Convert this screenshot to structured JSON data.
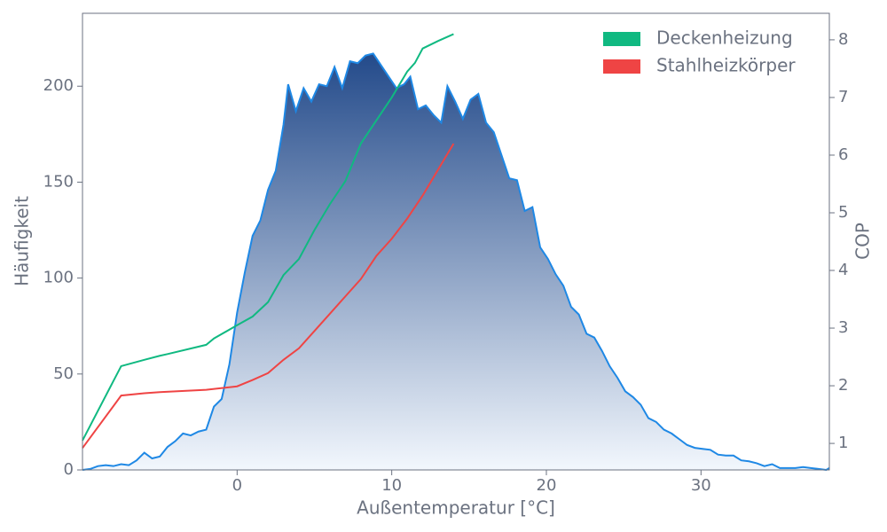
{
  "chart_data": {
    "type": "line",
    "xlabel": "Außentemperatur [°C]",
    "ylabel": "Häufigkeit",
    "y2label": "COP",
    "xlim": [
      -10,
      38.3
    ],
    "xticks": [
      0,
      10,
      20,
      30
    ],
    "ylim": [
      0,
      238
    ],
    "yticks": [
      0,
      50,
      100,
      150,
      200
    ],
    "y2lim": [
      0.54,
      8.46
    ],
    "y2ticks": [
      1,
      2,
      3,
      4,
      5,
      6,
      7,
      8
    ],
    "legend": "upper right",
    "series": [
      {
        "type": "area",
        "color": "#1e88e5",
        "gradient": [
          "#234a8a",
          "#f2f7fd"
        ],
        "x": [
          -10,
          -9.5,
          -9,
          -8.5,
          -8,
          -7.5,
          -7,
          -6.5,
          -6,
          -5.5,
          -5,
          -4.5,
          -4,
          -3.5,
          -3,
          -2.5,
          -2,
          -1.5,
          -1,
          -0.5,
          0,
          0.5,
          1,
          1.5,
          2,
          2.5,
          3,
          3.3,
          3.8,
          4.3,
          4.8,
          5.3,
          5.8,
          6.3,
          6.8,
          7.3,
          7.8,
          8.3,
          8.8,
          9.3,
          9.8,
          10.3,
          10.8,
          11.2,
          11.7,
          12.2,
          12.7,
          13.2,
          13.6,
          14.1,
          14.6,
          15.1,
          15.6,
          16.1,
          16.6,
          17.1,
          17.6,
          18.1,
          18.6,
          19.1,
          19.6,
          20.1,
          20.6,
          21.1,
          21.6,
          22.1,
          22.6,
          23.1,
          23.6,
          24.1,
          24.6,
          25.1,
          25.6,
          26.1,
          26.6,
          27.1,
          27.6,
          28.1,
          28.6,
          29.1,
          29.6,
          30.1,
          30.6,
          31.1,
          31.6,
          32.1,
          32.6,
          33.1,
          33.6,
          34.1,
          34.6,
          35.1,
          35.6,
          36.1,
          36.6,
          37.1,
          37.6,
          38.1,
          38.3
        ],
        "values": [
          0,
          0.5,
          2,
          2.5,
          2,
          3,
          2.5,
          5,
          9,
          6,
          7,
          12,
          15,
          19,
          18,
          20,
          21,
          33,
          37,
          55,
          82,
          103,
          122,
          130,
          146,
          156,
          180,
          201,
          187,
          199,
          192,
          201,
          200,
          210,
          199,
          213,
          212,
          216,
          217,
          211,
          205,
          199,
          201,
          205,
          188,
          190,
          185,
          181,
          200,
          192,
          183,
          193,
          196,
          181,
          176,
          164,
          152,
          151,
          135,
          137,
          116,
          110,
          102,
          96,
          85,
          81,
          71,
          69,
          62,
          54,
          48,
          41,
          38,
          34,
          27,
          25,
          21,
          19,
          16,
          13,
          11.5,
          11,
          10.5,
          8,
          7.5,
          7.5,
          5,
          4.5,
          3.5,
          2,
          3,
          1,
          1,
          1,
          1.5,
          1,
          0.5,
          0,
          1
        ]
      },
      {
        "name": "Deckenheizung",
        "color": "#10b981",
        "axis": "y2",
        "x": [
          -10,
          -7.5,
          -6,
          -5,
          -4.5,
          -2,
          -1.5,
          0,
          1,
          2,
          3,
          4,
          5,
          6,
          7,
          8,
          9,
          10,
          11,
          11.5,
          12,
          13,
          14
        ],
        "values": [
          1.05,
          2.34,
          2.45,
          2.52,
          2.55,
          2.71,
          2.82,
          3.05,
          3.2,
          3.45,
          3.92,
          4.2,
          4.7,
          5.15,
          5.55,
          6.2,
          6.6,
          7.0,
          7.45,
          7.6,
          7.85,
          7.98,
          8.1
        ]
      },
      {
        "name": "Stahlheizkörper",
        "color": "#ef4444",
        "axis": "y2",
        "x": [
          -10,
          -7.5,
          -6,
          -5,
          -2,
          0,
          1,
          2,
          3,
          4,
          5,
          6,
          7,
          8,
          9,
          10,
          11,
          12,
          13,
          14
        ],
        "values": [
          0.92,
          1.83,
          1.87,
          1.89,
          1.93,
          1.99,
          2.1,
          2.22,
          2.45,
          2.65,
          2.95,
          3.25,
          3.55,
          3.85,
          4.25,
          4.55,
          4.9,
          5.3,
          5.75,
          6.2
        ]
      }
    ]
  }
}
